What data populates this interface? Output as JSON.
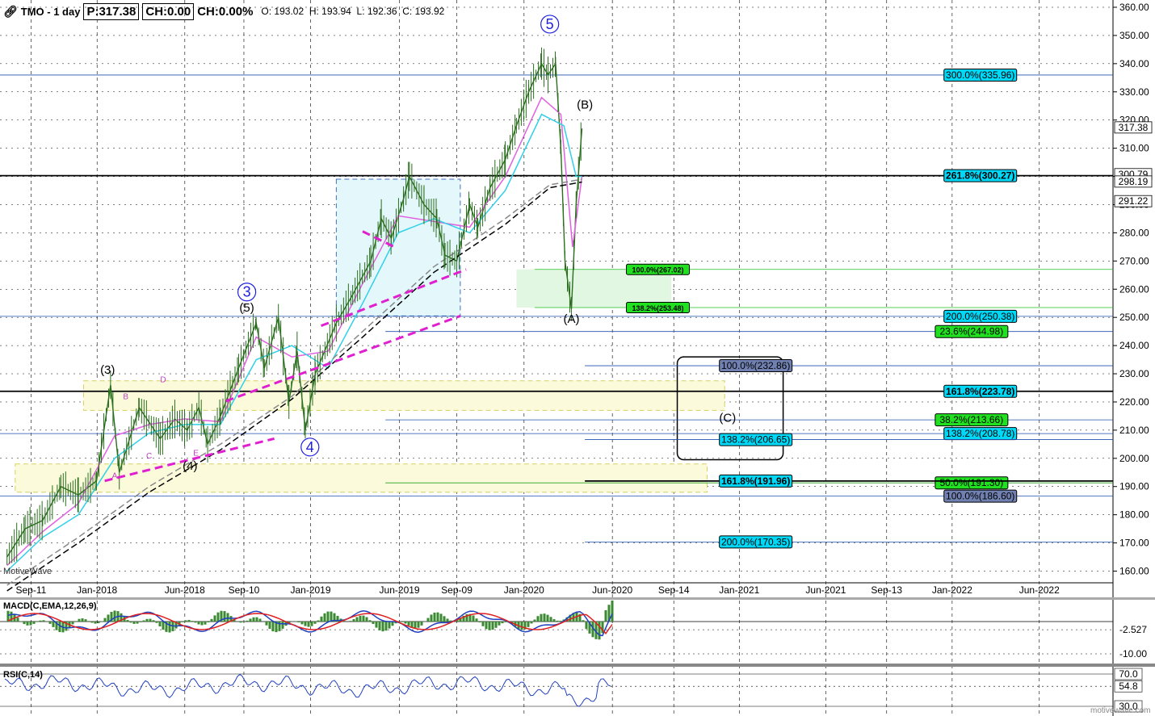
{
  "header": {
    "icon": "link-icon",
    "title": "TMO - 1 day",
    "price": "P:317.38",
    "change": "CH:0.00",
    "change_pct": "CH:0.00%",
    "open": "O: 193.02",
    "high": "H: 193.94",
    "low": "L: 192.36",
    "close": "C: 193.92"
  },
  "watermark": "MotiveWave",
  "footer_watermark": "motivewave.com",
  "chart_data": [
    {
      "type": "line",
      "name": "TMO price",
      "ylim": [
        158,
        362
      ],
      "y_ticks": [
        "360.00",
        "350.00",
        "340.00",
        "330.00",
        "320.00",
        "310.00",
        "300.00",
        "290.00",
        "280.00",
        "270.00",
        "260.00",
        "250.00",
        "240.00",
        "230.00",
        "220.00",
        "210.00",
        "200.00",
        "190.00",
        "180.00",
        "170.00",
        "160.00"
      ],
      "x_ticks": [
        "Sep-11",
        "Jan-2018",
        "Jun-2018",
        "Sep-10",
        "Jan-2019",
        "Jun-2019",
        "Sep-09",
        "Jan-2020",
        "Jun-2020",
        "Sep-14",
        "Jan-2021",
        "Jun-2021",
        "Sep-13",
        "Jan-2022",
        "Jun-2022"
      ],
      "price_labels": {
        "last": "317.38",
        "a": "300.79",
        "b": "298.19",
        "c": "291.22"
      },
      "series": [
        {
          "name": "price",
          "color": "#2a6e1e",
          "x": [
            "2017-08-01",
            "2017-09-01",
            "2017-10-01",
            "2017-11-01",
            "2017-12-01",
            "2018-01-01",
            "2018-01-25",
            "2018-02-09",
            "2018-03-15",
            "2018-04-20",
            "2018-05-15",
            "2018-06-05",
            "2018-06-25",
            "2018-07-10",
            "2018-08-01",
            "2018-09-01",
            "2018-10-01",
            "2018-10-15",
            "2018-11-08",
            "2018-11-26",
            "2018-12-10",
            "2018-12-24",
            "2019-01-10",
            "2019-02-15",
            "2019-03-15",
            "2019-04-15",
            "2019-05-03",
            "2019-05-20",
            "2019-06-10",
            "2019-06-20",
            "2019-07-15",
            "2019-08-06",
            "2019-08-20",
            "2019-09-09",
            "2019-10-01",
            "2019-10-15",
            "2019-11-05",
            "2019-12-01",
            "2019-12-20",
            "2020-01-10",
            "2020-02-01",
            "2020-02-12",
            "2020-02-25",
            "2020-03-05",
            "2020-03-12",
            "2020-03-23",
            "2020-03-31",
            "2020-04-10"
          ],
          "y": [
            165,
            175,
            178,
            190,
            187,
            192,
            226,
            195,
            218,
            207,
            214,
            210,
            218,
            205,
            215,
            232,
            248,
            232,
            250,
            220,
            238,
            210,
            230,
            248,
            258,
            270,
            285,
            278,
            292,
            300,
            290,
            285,
            272,
            270,
            290,
            282,
            296,
            306,
            318,
            330,
            340,
            336,
            340,
            310,
            270,
            253,
            290,
            317
          ]
        },
        {
          "name": "fast-ma",
          "color": "#e060e0",
          "x": [
            "2017-08-01",
            "2017-10-01",
            "2017-12-01",
            "2018-02-01",
            "2018-04-01",
            "2018-06-01",
            "2018-08-01",
            "2018-10-01",
            "2018-12-01",
            "2019-02-01",
            "2019-04-01",
            "2019-06-01",
            "2019-08-01",
            "2019-10-01",
            "2019-12-01",
            "2020-02-01",
            "2020-03-05",
            "2020-03-25",
            "2020-04-10"
          ],
          "y": [
            162,
            174,
            184,
            208,
            212,
            214,
            213,
            243,
            236,
            238,
            262,
            286,
            284,
            282,
            300,
            328,
            322,
            275,
            300
          ]
        },
        {
          "name": "mid-ma",
          "color": "#30d0e8",
          "x": [
            "2017-08-01",
            "2017-10-01",
            "2017-12-01",
            "2018-02-01",
            "2018-04-01",
            "2018-06-01",
            "2018-08-01",
            "2018-10-01",
            "2018-12-01",
            "2019-02-01",
            "2019-04-01",
            "2019-06-01",
            "2019-08-01",
            "2019-10-01",
            "2019-12-01",
            "2020-02-01",
            "2020-03-10",
            "2020-03-31",
            "2020-04-10"
          ],
          "y": [
            160,
            172,
            180,
            200,
            209,
            212,
            212,
            235,
            240,
            232,
            255,
            280,
            285,
            280,
            295,
            322,
            318,
            300,
            300
          ]
        },
        {
          "name": "slow-ma",
          "color": "#888888",
          "x": [
            "2017-08-01",
            "2017-12-01",
            "2018-04-01",
            "2018-08-01",
            "2018-12-01",
            "2019-04-01",
            "2019-08-01",
            "2019-12-01",
            "2020-02-15",
            "2020-04-10"
          ],
          "y": [
            155,
            172,
            190,
            205,
            222,
            245,
            268,
            285,
            297,
            299
          ]
        },
        {
          "name": "long-ma",
          "color": "#000000",
          "x": [
            "2017-08-01",
            "2017-12-01",
            "2018-04-01",
            "2018-08-01",
            "2018-12-01",
            "2019-04-01",
            "2019-08-01",
            "2019-12-01",
            "2020-02-15",
            "2020-04-10"
          ],
          "y": [
            153,
            170,
            188,
            203,
            221,
            243,
            266,
            283,
            296,
            298
          ]
        }
      ],
      "levels": [
        {
          "label": "300.0%(335.96)",
          "value": 335.96,
          "color": "#00d8f8",
          "line": "#2050b0",
          "from": "2017-07-20",
          "label_at": "2021-12-20",
          "tag": "right"
        },
        {
          "label": "261.8%(300.27)",
          "value": 300.27,
          "color": "#00d8f8",
          "line": "#000000",
          "from": "2017-07-20",
          "label_at": "2021-12-20",
          "tag": "right",
          "bold": true
        },
        {
          "label": "200.0%(250.38)",
          "value": 250.38,
          "color": "#00d8f8",
          "line": "#2050b0",
          "from": "2017-07-20",
          "label_at": "2021-12-20",
          "tag": "right"
        },
        {
          "label": "23.6%(244.98)",
          "value": 244.98,
          "color": "#20e020",
          "line": "#2050b0",
          "from": "2019-05-10",
          "label_at": "2021-12-05",
          "tag": "right"
        },
        {
          "label": "161.8%(223.78)",
          "value": 223.78,
          "color": "#00d8f8",
          "line": "#000000",
          "from": "2017-07-20",
          "label_at": "2021-12-20",
          "tag": "right",
          "bold": true
        },
        {
          "label": "38.2%(213.66)",
          "value": 213.66,
          "color": "#20e020",
          "line": "#2050b0",
          "from": "2019-05-10",
          "label_at": "2021-12-05",
          "tag": "right"
        },
        {
          "label": "138.2%(208.78)",
          "value": 208.78,
          "color": "#00d8f8",
          "line": "#2050b0",
          "from": "2017-07-20",
          "label_at": "2021-12-20",
          "tag": "right"
        },
        {
          "label": "50.0%(191.30)",
          "value": 191.3,
          "color": "#20e020",
          "line": "#20a020",
          "from": "2019-05-10",
          "label_at": "2021-12-05",
          "tag": "right"
        },
        {
          "label": "100.0%(186.60)",
          "value": 186.6,
          "color": "#7080b0",
          "line": "#2050b0",
          "from": "2017-07-20",
          "label_at": "2021-12-20",
          "tag": "right"
        },
        {
          "label": "100.0%(232.86)",
          "value": 232.86,
          "color": "#7080b0",
          "line": "#2050b0",
          "from": "2020-04-15",
          "label_at": "2020-12-01",
          "tag": "left"
        },
        {
          "label": "138.2%(206.65)",
          "value": 206.65,
          "color": "#00d8f8",
          "line": "#2050b0",
          "from": "2020-04-15",
          "label_at": "2020-12-01",
          "tag": "left"
        },
        {
          "label": "161.8%(191.96)",
          "value": 191.96,
          "color": "#00d8f8",
          "line": "#000000",
          "from": "2020-04-15",
          "label_at": "2020-12-01",
          "tag": "left",
          "bold": true
        },
        {
          "label": "200.0%(170.35)",
          "value": 170.35,
          "color": "#00d8f8",
          "line": "#2050b0",
          "from": "2020-04-15",
          "label_at": "2020-12-01",
          "tag": "left"
        },
        {
          "label": "100.0%(267.02)",
          "value": 267.02,
          "color": "#20e020",
          "line": "#20c020",
          "from": "2020-01-20",
          "label_at": "2020-06-25",
          "tag": "small"
        },
        {
          "label": "138.2%(253.48)",
          "value": 253.48,
          "color": "#20e020",
          "line": "#20c020",
          "from": "2020-01-20",
          "label_at": "2020-06-25",
          "tag": "small"
        }
      ],
      "zones": [
        {
          "from": "2019-02-15",
          "to": "2019-09-15",
          "top": 299,
          "bottom": 250.5,
          "fill": "#e4f8fc",
          "stroke": "#4070c0"
        },
        {
          "from": "2019-12-20",
          "to": "2020-09-10",
          "top": 267.02,
          "bottom": 253.48,
          "fill": "#e2f7e2",
          "stroke": "none"
        },
        {
          "from": "2017-12-10",
          "to": "2020-12-10",
          "top": 227.5,
          "bottom": 217.0,
          "fill": "#fbfbdc",
          "stroke": "#d8d060"
        },
        {
          "from": "2017-08-15",
          "to": "2020-11-10",
          "top": 198,
          "bottom": 188,
          "fill": "#fbfbdc",
          "stroke": "#d8d060"
        }
      ],
      "target_box": {
        "from": "2020-09-20",
        "to": "2021-03-20",
        "top": 236,
        "bottom": 199.5
      },
      "trendlines": [
        {
          "x": [
            "2018-01-15",
            "2018-11-01"
          ],
          "y": [
            192,
            207
          ]
        },
        {
          "x": [
            "2018-08-10",
            "2019-09-15"
          ],
          "y": [
            220.3,
            250.5
          ]
        },
        {
          "x": [
            "2019-04-01",
            "2019-05-30"
          ],
          "y": [
            280.5,
            274.5
          ]
        },
        {
          "x": [
            "2019-01-20",
            "2019-09-25"
          ],
          "y": [
            247,
            267
          ]
        }
      ],
      "waves": [
        {
          "label": "5",
          "x": "2020-02-15",
          "y": 354,
          "circle": true
        },
        {
          "label": "3",
          "x": "2018-09-15",
          "y": 259,
          "circle": true
        },
        {
          "label": "4",
          "x": "2019-01-01",
          "y": 204,
          "circle": true
        },
        {
          "label": "(B)",
          "x": "2020-04-15",
          "y": 324
        },
        {
          "label": "(A)",
          "x": "2020-03-23",
          "y": 248
        },
        {
          "label": "(5)",
          "x": "2018-09-15",
          "y": 252
        },
        {
          "label": "(3)",
          "x": "2018-01-20",
          "y": 230
        },
        {
          "label": "(4)",
          "x": "2018-06-10",
          "y": 196
        },
        {
          "label": "(C)",
          "x": "2020-12-15",
          "y": 213
        },
        {
          "label": "A",
          "x": "2018-02-01",
          "y": 193,
          "small": true
        },
        {
          "label": "B",
          "x": "2018-02-20",
          "y": 221,
          "small": true
        },
        {
          "label": "C",
          "x": "2018-04-01",
          "y": 200,
          "small": true
        },
        {
          "label": "D",
          "x": "2018-04-25",
          "y": 227,
          "small": true
        },
        {
          "label": "E",
          "x": "2018-06-20",
          "y": 201,
          "small": true
        }
      ]
    },
    {
      "type": "line",
      "name": "MACD(C,EMA,12,26,9)",
      "ylim": [
        -13,
        7
      ],
      "y_ticks": [
        "-2.527",
        "-10.00"
      ],
      "series": [
        {
          "name": "macd",
          "color": "#2040c0"
        },
        {
          "name": "signal",
          "color": "#e02020"
        },
        {
          "name": "histogram",
          "color": "#3a8a30"
        }
      ]
    },
    {
      "type": "line",
      "name": "RSI(C,14)",
      "ylim": [
        25,
        75
      ],
      "y_ticks": [
        "70.0",
        "54.8",
        "30.0"
      ],
      "series": [
        {
          "name": "rsi",
          "color": "#2040c0"
        }
      ]
    }
  ]
}
